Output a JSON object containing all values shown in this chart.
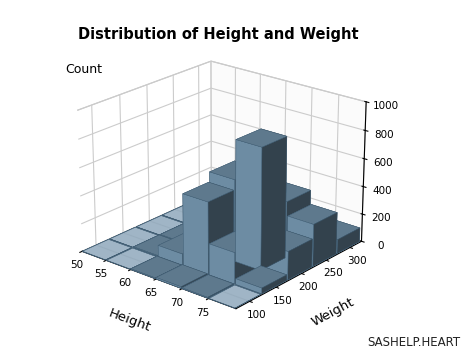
{
  "title": "Distribution of Height and Weight",
  "xlabel": "Height",
  "ylabel": "Weight",
  "zlabel": "Count",
  "datasource": "SASHELP.HEART",
  "height_edges": [
    50,
    55,
    60,
    65,
    70,
    75,
    80
  ],
  "weight_edges": [
    75,
    125,
    175,
    225,
    275,
    325
  ],
  "counts": [
    [
      0,
      0,
      0,
      0,
      0
    ],
    [
      0,
      5,
      5,
      0,
      0
    ],
    [
      5,
      80,
      30,
      5,
      0
    ],
    [
      10,
      510,
      580,
      80,
      10
    ],
    [
      5,
      220,
      860,
      400,
      80
    ],
    [
      0,
      40,
      200,
      300,
      100
    ]
  ],
  "bar_color": "#7b9eb8",
  "bar_edge_color": "#3d5a70",
  "floor_color": "#8fa8bc",
  "background_color": "#ffffff",
  "pane_color_side": "#f5f5f5",
  "pane_color_back": "#f0f0f0",
  "zlim": [
    0,
    1000
  ],
  "zticks": [
    0,
    200,
    400,
    600,
    800,
    1000
  ],
  "height_ticks": [
    50,
    55,
    60,
    65,
    70,
    75
  ],
  "weight_ticks": [
    100,
    150,
    200,
    250,
    300
  ],
  "elev": 22,
  "azim": -50,
  "figsize": [
    4.75,
    3.56
  ],
  "dpi": 100
}
